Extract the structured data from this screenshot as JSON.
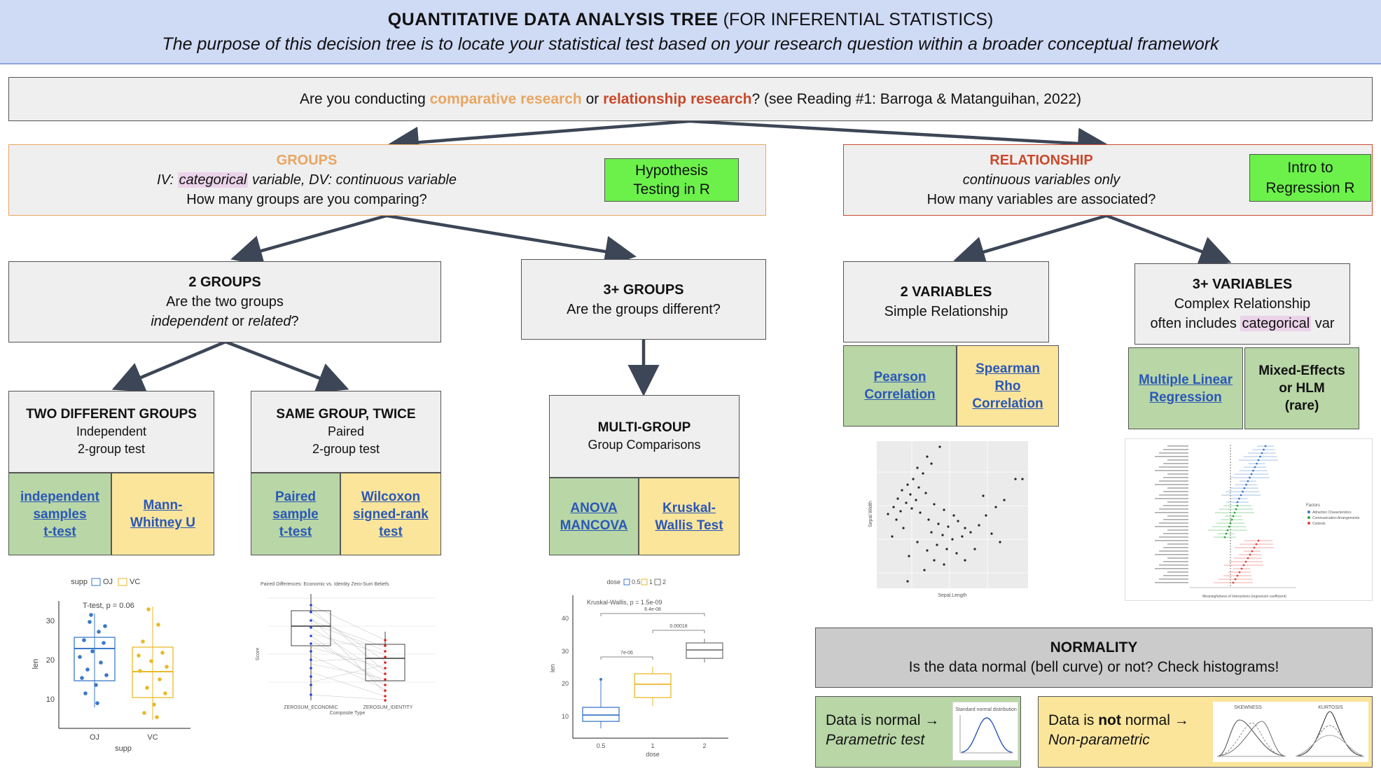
{
  "header": {
    "title_bold": "QUANTITATIVE  DATA  ANALYSIS  TREE",
    "title_rest": " (FOR INFERENTIAL STATISTICS)",
    "subtitle": "The purpose of this decision tree is to locate your statistical test based on your research question within a broader conceptual framework"
  },
  "root": {
    "prefix": "Are you conducting ",
    "comparative": "comparative research",
    "or": " or ",
    "relationship": "relationship research",
    "suffix": "? (see Reading #1: Barroga & Matanguihan, 2022)"
  },
  "groups": {
    "title": "GROUPS",
    "line1_pre": "IV: ",
    "line1_cat": "categorical",
    "line1_post": " variable, DV: continuous variable",
    "line2": "How many groups are you comparing?",
    "button": "Hypothesis Testing in R"
  },
  "relationship": {
    "title": "RELATIONSHIP",
    "line1": "continuous variables only",
    "line2": "How many variables are associated?",
    "button": "Intro to Regression R"
  },
  "two_groups": {
    "title": "2 GROUPS",
    "line1": "Are the two groups",
    "line2_i1": "independent",
    "line2_or": " or ",
    "line2_i2": "related",
    "line2_q": "?"
  },
  "three_groups": {
    "title": "3+ GROUPS",
    "line1": "Are the  groups different?"
  },
  "two_vars": {
    "title": "2 VARIABLES",
    "line1": "Simple Relationship"
  },
  "three_vars": {
    "title": "3+ VARIABLES",
    "line1": "Complex Relationship",
    "line2_pre": "often includes ",
    "line2_cat": "categorical",
    "line2_post": " var"
  },
  "two_diff": {
    "title": "TWO DIFFERENT GROUPS",
    "line1": "Independent",
    "line2": "2-group test"
  },
  "same_group": {
    "title": "SAME GROUP,  TWICE",
    "line1": "Paired",
    "line2": "2-group test"
  },
  "multi_group": {
    "title": "MULTI-GROUP",
    "line1": "Group Comparisons"
  },
  "tests": {
    "ind_t": [
      "independent",
      "samples",
      "t-test"
    ],
    "mann": [
      "Mann-",
      "Whitney U"
    ],
    "paired_t": [
      "Paired",
      "sample",
      " t-test"
    ],
    "wilcoxon": [
      "Wilcoxon",
      "signed-rank",
      "test"
    ],
    "anova": [
      "ANOVA",
      "MANCOVA"
    ],
    "kruskal": [
      "Kruskal-",
      "Wallis Test"
    ],
    "pearson": [
      "Pearson",
      "Correlation"
    ],
    "spearman": [
      "Spearman",
      "Rho",
      "Correlation"
    ],
    "mlr": [
      "Multiple Linear",
      "Regression"
    ],
    "mixed": [
      "Mixed-Effects",
      "or HLM",
      "(rare)"
    ]
  },
  "normality": {
    "title": "NORMALITY",
    "line1": "Is the data normal (bell curve) or not? Check histograms!",
    "normal_line1": "Data is normal →",
    "normal_line2": "Parametric test",
    "notnormal_pre": "Data is ",
    "notnormal_bold": "not",
    "notnormal_post": " normal →",
    "notnormal_line2": "Non-parametric"
  },
  "plots": {
    "boxplot1": {
      "legend_title": "supp",
      "legend_items": [
        "OJ",
        "VC"
      ],
      "annotation": "T-test, p = 0.06",
      "xlabel": "supp",
      "ylabel": "len",
      "yticks": [
        "30",
        "20",
        "10"
      ],
      "xticks": [
        "OJ",
        "VC"
      ],
      "colors": {
        "oj": "#3b78c8",
        "vc": "#e9b92a"
      }
    },
    "paired": {
      "title": "Paired Differences: Economic vs. Identity Zero-Sum Beliefs",
      "xlabel": "Composite Type",
      "ylabel": "Score",
      "xticks": [
        "ZEROSUM_ECONOMIC",
        "ZEROSUM_IDENTITY"
      ]
    },
    "kruskal": {
      "legend_title": "dose",
      "legend_items": [
        "0.5",
        "1",
        "2"
      ],
      "annotation": "Kruskal-Wallis, p = 1.5e-09",
      "pvals": [
        "8.4e-08",
        "7e-06",
        "0.00018"
      ],
      "xlabel": "dose",
      "ylabel": "len",
      "yticks": [
        "40",
        "30",
        "20",
        "10"
      ],
      "xticks": [
        "0.5",
        "1",
        "2"
      ]
    },
    "scatter": {
      "xlabel": "Sepal.Length",
      "ylabel": "Sepal.Width"
    },
    "forest": {
      "legend_title": "Factors",
      "legend_items": [
        "Attraction Characteristics",
        "Communication Arrangements",
        "Controls"
      ],
      "xlabel": "Meaningfulness of Interactions (regression coefficient)"
    },
    "bell": {
      "title": "Standard normal distribution"
    },
    "skew": {
      "left_title": "SKEWNESS",
      "right_title": "KURTOSIS"
    }
  }
}
